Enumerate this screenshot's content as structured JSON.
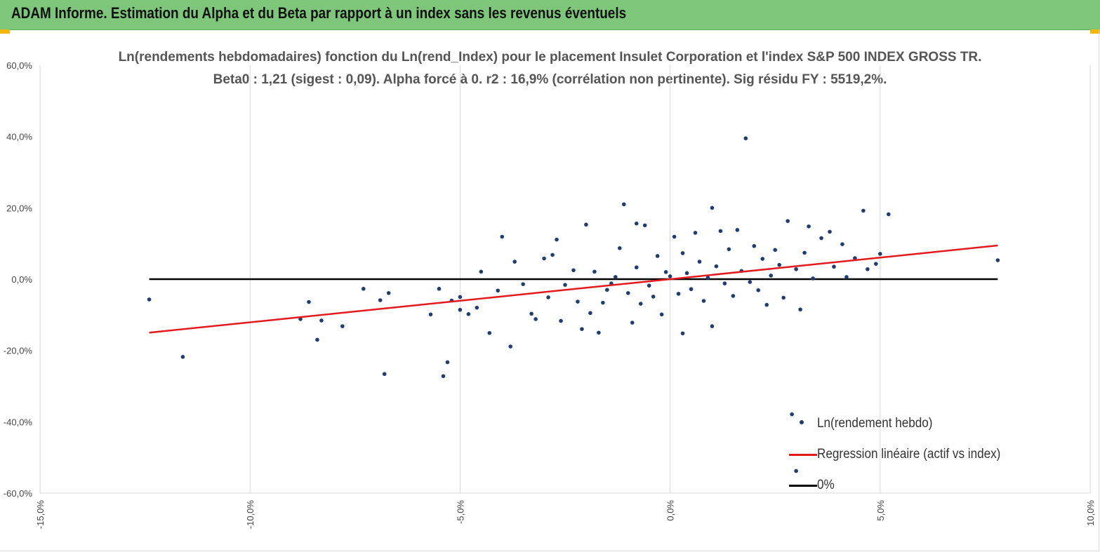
{
  "header": {
    "title": "ADAM Informe. Estimation du Alpha et du Beta par rapport à un index sans les revenus éventuels"
  },
  "chart_data": {
    "type": "scatter",
    "title_line1": "Ln(rendements hebdomadaires) fonction du Ln(rend_Index) pour le placement Insulet Corporation et l'index S&P 500 INDEX GROSS TR.",
    "title_line2": "Beta0 : 1,21 (sigest : 0,09).  Alpha forcé à 0. r2 : 16,9% (corrélation non pertinente). Sig résidu FY : 5519,2%.",
    "xlim": [
      -15,
      10
    ],
    "ylim": [
      -60,
      60
    ],
    "x_ticks": [
      -15,
      -10,
      -5,
      0,
      5,
      10
    ],
    "y_ticks": [
      60,
      40,
      20,
      0,
      -20,
      -40,
      -60
    ],
    "x_tick_labels": [
      "-15,0%",
      "-10,0%",
      "-5,0%",
      "0,0%",
      "5,0%",
      "10,0%"
    ],
    "y_tick_labels": [
      "60,0%",
      "40,0%",
      "20,0%",
      "0,0%",
      "-20,0%",
      "-40,0%",
      "-60,0%"
    ],
    "grid": "vertical",
    "legend_position": "bottom-right",
    "colors": {
      "points": "#1f3d70",
      "regression": "#e31a1c",
      "zero_line": "#000000",
      "grid": "#d9d9d9"
    },
    "series": [
      {
        "name": "Ln(rendement hebdo)",
        "kind": "scatter",
        "points": [
          [
            -12.4,
            -5.7
          ],
          [
            -11.6,
            -21.8
          ],
          [
            -8.8,
            -11.2
          ],
          [
            -8.6,
            -6.4
          ],
          [
            -8.4,
            -17.0
          ],
          [
            -8.3,
            -11.6
          ],
          [
            -7.8,
            -13.2
          ],
          [
            -7.3,
            -2.7
          ],
          [
            -6.9,
            -5.9
          ],
          [
            -6.8,
            -26.6
          ],
          [
            -6.7,
            -3.9
          ],
          [
            -5.7,
            -9.9
          ],
          [
            -5.5,
            -2.7
          ],
          [
            -5.4,
            -27.2
          ],
          [
            -5.3,
            -23.3
          ],
          [
            -5.2,
            -6.0
          ],
          [
            -5.0,
            -5.0
          ],
          [
            -5.0,
            -8.6
          ],
          [
            -4.8,
            -9.8
          ],
          [
            -4.6,
            -8.0
          ],
          [
            -4.5,
            2.1
          ],
          [
            -4.3,
            -15.1
          ],
          [
            -4.1,
            -3.2
          ],
          [
            -4.0,
            11.9
          ],
          [
            -3.8,
            -18.9
          ],
          [
            -3.7,
            4.9
          ],
          [
            -3.5,
            -1.4
          ],
          [
            -3.3,
            -9.7
          ],
          [
            -3.2,
            -11.2
          ],
          [
            -3.0,
            5.8
          ],
          [
            -2.9,
            -5.1
          ],
          [
            -2.8,
            6.8
          ],
          [
            -2.7,
            11.1
          ],
          [
            -2.6,
            -11.7
          ],
          [
            -2.5,
            -1.6
          ],
          [
            -2.3,
            2.5
          ],
          [
            -2.2,
            -6.3
          ],
          [
            -2.1,
            -14.0
          ],
          [
            -2.0,
            15.3
          ],
          [
            -1.9,
            -9.5
          ],
          [
            -1.8,
            2.1
          ],
          [
            -1.7,
            -15.0
          ],
          [
            -1.6,
            -6.6
          ],
          [
            -1.5,
            -3.0
          ],
          [
            -1.4,
            -1.2
          ],
          [
            -1.3,
            0.6
          ],
          [
            -1.2,
            8.7
          ],
          [
            -1.1,
            21.0
          ],
          [
            -1.0,
            -3.9
          ],
          [
            -0.9,
            -12.2
          ],
          [
            -0.8,
            3.3
          ],
          [
            -0.8,
            15.6
          ],
          [
            -0.7,
            -6.9
          ],
          [
            -0.6,
            15.1
          ],
          [
            -0.5,
            -1.8
          ],
          [
            -0.4,
            -4.9
          ],
          [
            -0.3,
            6.5
          ],
          [
            -0.2,
            -9.9
          ],
          [
            -0.1,
            2.0
          ],
          [
            0.0,
            0.8
          ],
          [
            0.1,
            11.9
          ],
          [
            0.2,
            -4.1
          ],
          [
            0.3,
            7.3
          ],
          [
            0.3,
            -15.2
          ],
          [
            0.4,
            1.7
          ],
          [
            0.5,
            -2.8
          ],
          [
            0.6,
            13.0
          ],
          [
            0.7,
            4.9
          ],
          [
            0.8,
            -6.1
          ],
          [
            0.9,
            0.4
          ],
          [
            1.0,
            20.0
          ],
          [
            1.0,
            -13.2
          ],
          [
            1.1,
            3.6
          ],
          [
            1.2,
            13.5
          ],
          [
            1.3,
            -1.2
          ],
          [
            1.4,
            8.4
          ],
          [
            1.5,
            -4.7
          ],
          [
            1.6,
            13.8
          ],
          [
            1.7,
            2.3
          ],
          [
            1.8,
            39.5
          ],
          [
            1.9,
            -0.8
          ],
          [
            2.0,
            9.3
          ],
          [
            2.1,
            -3.1
          ],
          [
            2.2,
            5.7
          ],
          [
            2.3,
            -7.2
          ],
          [
            2.4,
            1.0
          ],
          [
            2.5,
            8.2
          ],
          [
            2.6,
            4.0
          ],
          [
            2.7,
            -5.2
          ],
          [
            2.8,
            16.3
          ],
          [
            2.9,
            -37.9
          ],
          [
            3.0,
            -53.8
          ],
          [
            3.0,
            2.8
          ],
          [
            3.1,
            -8.5
          ],
          [
            3.2,
            7.4
          ],
          [
            3.3,
            14.8
          ],
          [
            3.4,
            0.2
          ],
          [
            3.6,
            11.5
          ],
          [
            3.8,
            13.3
          ],
          [
            3.9,
            3.5
          ],
          [
            4.1,
            9.8
          ],
          [
            4.2,
            0.6
          ],
          [
            4.4,
            5.9
          ],
          [
            4.6,
            19.2
          ],
          [
            4.7,
            2.8
          ],
          [
            4.9,
            4.3
          ],
          [
            5.0,
            7.1
          ],
          [
            5.2,
            18.2
          ],
          [
            7.8,
            5.3
          ]
        ]
      },
      {
        "name": "Regression linéaire (actif vs index)",
        "kind": "line",
        "slope": 1.21,
        "intercept": 0,
        "x_range": [
          -12.4,
          7.8
        ]
      },
      {
        "name": "0%",
        "kind": "line",
        "y": 0,
        "x_range": [
          -12.4,
          7.8
        ]
      }
    ]
  }
}
